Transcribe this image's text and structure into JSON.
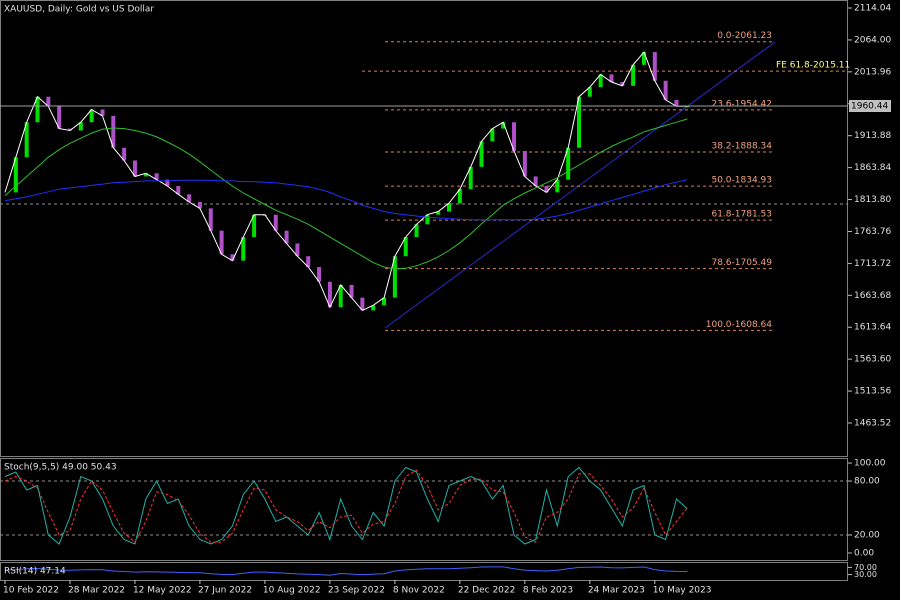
{
  "chart_data": [
    {
      "type": "line",
      "title": "XAUUSD, Daily:  Gold vs US Dollar",
      "categories": [
        "10 Feb 2022",
        null,
        null,
        null,
        null,
        null,
        "28 Mar 2022",
        null,
        null,
        null,
        null,
        null,
        "12 May 2022",
        null,
        null,
        null,
        null,
        null,
        "27 Jun 2022",
        null,
        null,
        null,
        null,
        null,
        "10 Aug 2022",
        null,
        null,
        null,
        null,
        null,
        "23 Sep 2022",
        null,
        null,
        null,
        null,
        null,
        "8 Nov 2022",
        null,
        null,
        null,
        null,
        null,
        "22 Dec 2022",
        null,
        null,
        null,
        null,
        null,
        "8 Feb 2023",
        null,
        null,
        null,
        null,
        null,
        "24 Mar 2023",
        null,
        null,
        null,
        null,
        null,
        "10 May 2023",
        null,
        null,
        null
      ],
      "series": [
        {
          "color": "#ffffff",
          "values": [
            1825,
            1880,
            1935,
            1975,
            1960,
            1925,
            1922,
            1935,
            1955,
            1945,
            1895,
            1875,
            1850,
            1855,
            1845,
            1835,
            1822,
            1810,
            1800,
            1765,
            1728,
            1718,
            1755,
            1790,
            1790,
            1765,
            1745,
            1725,
            1708,
            1685,
            1645,
            1680,
            1660,
            1640,
            1648,
            1660,
            1725,
            1755,
            1775,
            1790,
            1795,
            1808,
            1830,
            1865,
            1905,
            1925,
            1935,
            1890,
            1850,
            1835,
            1825,
            1845,
            1895,
            1975,
            1990,
            2010,
            1998,
            1992,
            2025,
            2045,
            2000,
            1970,
            1960,
            1960
          ]
        },
        {
          "color": "#2fbf2f",
          "values": [
            1820,
            1835,
            1850,
            1865,
            1880,
            1892,
            1902,
            1910,
            1918,
            1924,
            1926,
            1925,
            1922,
            1918,
            1912,
            1904,
            1895,
            1885,
            1873,
            1860,
            1847,
            1835,
            1824,
            1815,
            1806,
            1797,
            1790,
            1783,
            1775,
            1765,
            1755,
            1745,
            1735,
            1725,
            1715,
            1708,
            1705,
            1706,
            1710,
            1716,
            1724,
            1734,
            1746,
            1760,
            1776,
            1790,
            1805,
            1815,
            1824,
            1832,
            1840,
            1848,
            1858,
            1868,
            1878,
            1888,
            1897,
            1905,
            1912,
            1920,
            1925,
            1930,
            1935,
            1940
          ]
        },
        {
          "color": "#2030ff",
          "values": [
            1812,
            1815,
            1818,
            1822,
            1826,
            1830,
            1832,
            1834,
            1836,
            1838,
            1840,
            1841,
            1842,
            1843,
            1843,
            1843,
            1844,
            1844,
            1844,
            1844,
            1843,
            1843,
            1842,
            1842,
            1841,
            1840,
            1838,
            1836,
            1834,
            1830,
            1825,
            1818,
            1812,
            1805,
            1800,
            1795,
            1792,
            1790,
            1788,
            1786,
            1785,
            1784,
            1783,
            1782,
            1782,
            1782,
            1782,
            1782,
            1782,
            1783,
            1785,
            1788,
            1792,
            1797,
            1802,
            1807,
            1812,
            1817,
            1822,
            1827,
            1832,
            1837,
            1841,
            1845
          ]
        }
      ],
      "up_color": "#00e000",
      "down_color": "#b050c8",
      "ylim": [
        1411.8,
        2126.6
      ],
      "yticks": [
        2114.04,
        {
          "value": 2064,
          "label": "2064.00"
        },
        2013.96,
        1963.92,
        1913.88,
        1863.84,
        {
          "value": 1813.8,
          "label": "1813.80"
        },
        1763.76,
        1713.72,
        1663.68,
        1613.64,
        {
          "value": 1563.6,
          "label": "1563.60"
        },
        1513.56,
        1463.52
      ],
      "last_price": 1960.44,
      "fib_levels": [
        {
          "label": "0.0-2061.23",
          "value": 2061.23
        },
        {
          "label": "23.6-1954.42",
          "value": 1954.42
        },
        {
          "label": "38.2-1888.34",
          "value": 1888.34
        },
        {
          "label": "50.0-1834.93",
          "value": 1834.93
        },
        {
          "label": "61.8-1781.53",
          "value": 1781.53
        },
        {
          "label": "78.6-1705.49",
          "value": 1705.49
        },
        {
          "label": "100.0-1608.64",
          "value": 1608.64
        }
      ],
      "fe_level": {
        "label": "FE 61.8-2015.11",
        "value": 2015.11
      }
    },
    {
      "type": "line",
      "title": "Stoch(9,5,5) 49.00 50.43",
      "series": [
        {
          "color": "#20b2aa",
          "values": [
            85,
            90,
            70,
            75,
            20,
            10,
            40,
            85,
            80,
            60,
            30,
            15,
            10,
            60,
            80,
            55,
            60,
            30,
            15,
            10,
            15,
            30,
            65,
            80,
            60,
            35,
            40,
            30,
            20,
            45,
            15,
            60,
            30,
            15,
            45,
            30,
            80,
            95,
            90,
            60,
            35,
            75,
            80,
            85,
            80,
            60,
            75,
            20,
            10,
            15,
            70,
            30,
            85,
            95,
            80,
            70,
            50,
            30,
            70,
            75,
            20,
            15,
            60,
            49
          ]
        },
        {
          "color": "#ff3030",
          "dashed": true,
          "values": [
            80,
            85,
            80,
            72,
            45,
            20,
            25,
            60,
            80,
            70,
            45,
            22,
            12,
            35,
            68,
            65,
            58,
            42,
            22,
            12,
            12,
            22,
            48,
            72,
            70,
            48,
            40,
            35,
            25,
            35,
            28,
            40,
            42,
            22,
            32,
            35,
            55,
            85,
            92,
            75,
            48,
            55,
            75,
            82,
            82,
            70,
            68,
            45,
            18,
            12,
            40,
            45,
            60,
            88,
            88,
            75,
            60,
            40,
            50,
            72,
            45,
            20,
            35,
            50.43
          ]
        }
      ],
      "ylim": [
        -7.8,
        105.6
      ],
      "yticks": [
        {
          "value": 100,
          "label": "100.00"
        },
        {
          "value": 80,
          "label": "80.00"
        },
        {
          "value": 20,
          "label": "20.00"
        },
        {
          "value": 0,
          "label": "0.00"
        }
      ],
      "levels": [
        80,
        20
      ]
    },
    {
      "type": "line",
      "title": "RSI(14) 47.14",
      "series": [
        {
          "color": "#4060ff",
          "values": [
            55,
            58,
            62,
            64,
            60,
            55,
            54,
            56,
            58,
            57,
            50,
            47,
            44,
            46,
            45,
            44,
            42,
            41,
            40,
            35,
            31,
            30,
            38,
            44,
            44,
            40,
            37,
            34,
            32,
            30,
            26,
            36,
            33,
            30,
            32,
            35,
            50,
            56,
            60,
            62,
            62,
            63,
            65,
            68,
            72,
            73,
            73,
            62,
            55,
            52,
            50,
            54,
            62,
            70,
            71,
            72,
            68,
            67,
            70,
            72,
            58,
            50,
            48,
            47.14
          ]
        }
      ],
      "ylim": [
        0,
        100
      ],
      "yticks": [
        {
          "value": 70,
          "label": "70.00"
        },
        {
          "value": 30,
          "label": "30.00"
        }
      ]
    }
  ]
}
